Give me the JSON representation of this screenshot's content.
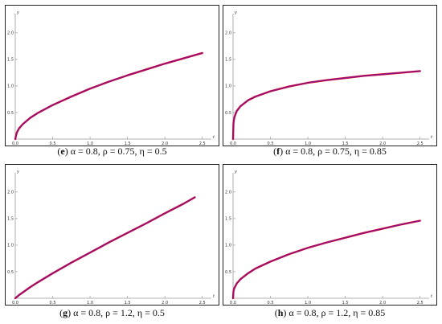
{
  "chart_data": [
    {
      "type": "line",
      "panel_label": "e",
      "caption_params": "α = 0.8, ρ = 0.75, η = 0.5",
      "xlabel": "t",
      "ylabel": "y",
      "xlim": [
        0,
        2.6
      ],
      "ylim": [
        0,
        2.3
      ],
      "xticks": [
        "0.0",
        "0.5",
        "1.0",
        "1.5",
        "2.0",
        "2.5"
      ],
      "yticks": [
        "0.5",
        "1.0",
        "1.5",
        "2.0"
      ],
      "series": [
        {
          "x": [
            0,
            0.02,
            0.05,
            0.1,
            0.2,
            0.3,
            0.5,
            0.75,
            1.0,
            1.25,
            1.5,
            1.75,
            2.0,
            2.25,
            2.5
          ],
          "y": [
            0,
            0.12,
            0.2,
            0.28,
            0.4,
            0.49,
            0.64,
            0.8,
            0.95,
            1.08,
            1.2,
            1.31,
            1.42,
            1.52,
            1.62
          ]
        }
      ]
    },
    {
      "type": "line",
      "panel_label": "f",
      "caption_params": "α = 0.8, ρ = 0.75, η = 0.85",
      "xlabel": "t",
      "ylabel": "y",
      "xlim": [
        0,
        2.6
      ],
      "ylim": [
        0,
        2.3
      ],
      "xticks": [
        "0.0",
        "0.5",
        "1.0",
        "1.5",
        "2.0",
        "2.5"
      ],
      "yticks": [
        "0.5",
        "1.0",
        "1.5",
        "2.0"
      ],
      "series": [
        {
          "x": [
            0,
            0.005,
            0.01,
            0.02,
            0.05,
            0.1,
            0.2,
            0.3,
            0.5,
            0.75,
            1.0,
            1.25,
            1.5,
            1.75,
            2.0,
            2.25,
            2.5
          ],
          "y": [
            0,
            0.28,
            0.35,
            0.42,
            0.53,
            0.62,
            0.73,
            0.8,
            0.9,
            0.99,
            1.06,
            1.11,
            1.15,
            1.19,
            1.22,
            1.25,
            1.28
          ]
        }
      ]
    },
    {
      "type": "line",
      "panel_label": "g",
      "caption_params": "α = 0.8, ρ = 1.2, η = 0.5",
      "xlabel": "t",
      "ylabel": "y",
      "xlim": [
        0,
        2.6
      ],
      "ylim": [
        0,
        2.3
      ],
      "xticks": [
        "0.0",
        "0.5",
        "1.0",
        "1.5",
        "2.0",
        "2.5"
      ],
      "yticks": [
        "0.5",
        "1.0",
        "1.5",
        "2.0"
      ],
      "series": [
        {
          "x": [
            0,
            0.05,
            0.1,
            0.2,
            0.3,
            0.5,
            0.75,
            1.0,
            1.25,
            1.5,
            1.75,
            2.0,
            2.25,
            2.4
          ],
          "y": [
            0,
            0.06,
            0.11,
            0.21,
            0.3,
            0.47,
            0.67,
            0.86,
            1.05,
            1.23,
            1.41,
            1.6,
            1.78,
            1.9
          ]
        }
      ]
    },
    {
      "type": "line",
      "panel_label": "h",
      "caption_params": "α = 0.8, ρ = 1.2, η = 0.85",
      "xlabel": "t",
      "ylabel": "y",
      "xlim": [
        0,
        2.6
      ],
      "ylim": [
        0,
        2.3
      ],
      "xticks": [
        "0.0",
        "0.5",
        "1.0",
        "1.5",
        "2.0",
        "2.5"
      ],
      "yticks": [
        "0.5",
        "1.0",
        "1.5",
        "2.0"
      ],
      "series": [
        {
          "x": [
            0,
            0.005,
            0.01,
            0.02,
            0.05,
            0.1,
            0.2,
            0.3,
            0.5,
            0.75,
            1.0,
            1.25,
            1.5,
            1.75,
            2.0,
            2.25,
            2.5
          ],
          "y": [
            0,
            0.12,
            0.16,
            0.2,
            0.28,
            0.36,
            0.47,
            0.56,
            0.69,
            0.83,
            0.95,
            1.05,
            1.14,
            1.23,
            1.31,
            1.39,
            1.46
          ]
        }
      ]
    }
  ]
}
